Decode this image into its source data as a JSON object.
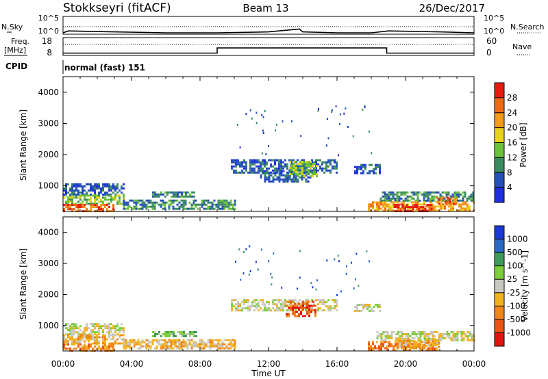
{
  "header": {
    "station": "Stokkseyri (fitACF)",
    "beam": "Beam 13",
    "date": "26/Dec/2017"
  },
  "strip_labels": {
    "nsky": "N.Sky",
    "nsearch": "N.Search",
    "freq_line1": "Freq.",
    "freq_line2": "[MHz]",
    "nave": "Nave",
    "cpid": "CPID",
    "cpid_value": "normal (fast) 151"
  },
  "strip_ticks": {
    "noise_left": [
      "10^5",
      "10^0"
    ],
    "noise_right": [
      "10^5",
      "10^0"
    ],
    "freq_left": [
      "18",
      "8"
    ],
    "nave_right": [
      "60",
      "0"
    ]
  },
  "colors": {
    "power": [
      "#1f2fe0",
      "#2550b8",
      "#3a8c5e",
      "#6cc13a",
      "#e8d21a",
      "#f39a1a",
      "#ef6a12",
      "#e81a0e"
    ],
    "velocity": [
      "#1a3ad8",
      "#2b6ac4",
      "#3f9b5a",
      "#7ccf3a",
      "#c8c8c0",
      "#f2b21e",
      "#f1861a",
      "#ec5414",
      "#e0140e"
    ]
  },
  "chart_data": [
    {
      "type": "line",
      "panel": "noise",
      "series": [
        {
          "name": "N.Sky",
          "x": [
            0,
            0.3,
            3,
            6,
            9,
            12,
            13.8,
            14,
            16,
            18,
            19,
            22,
            24
          ],
          "y": [
            1.0,
            1.2,
            1.1,
            1.0,
            1.0,
            1.1,
            1.4,
            1.1,
            1.0,
            1.0,
            1.2,
            1.1,
            1.0
          ]
        }
      ],
      "xlim": [
        0,
        24
      ],
      "left_ticks": [
        "10^5",
        "10^0"
      ],
      "right_ticks": [
        "10^5",
        "10^0"
      ]
    },
    {
      "type": "line",
      "panel": "frequency",
      "ylabel": "Freq. [MHz]",
      "series": [
        {
          "name": "Freq.",
          "x": [
            0,
            9.0,
            9.0,
            18.9,
            18.9,
            24
          ],
          "y": [
            9.3,
            9.3,
            12.2,
            12.2,
            9.3,
            9.3
          ]
        },
        {
          "name": "Nave",
          "x": [
            0,
            24
          ],
          "y": [
            38,
            38
          ]
        }
      ],
      "xlim": [
        0,
        24
      ],
      "ylim": [
        8,
        18
      ],
      "right_ylim": [
        0,
        60
      ],
      "left_ticks": [
        "18",
        "8"
      ],
      "right_ticks": [
        "60",
        "0"
      ]
    },
    {
      "type": "heatmap",
      "panel": "power",
      "xlabel": "",
      "ylabel": "Slant Range [km]",
      "colorbar_label": "Power [dB]",
      "colorbar_ticks": [
        "4",
        "8",
        "12",
        "16",
        "20",
        "24",
        "28"
      ],
      "xlim": [
        0,
        24
      ],
      "ylim": [
        180,
        4500
      ],
      "y_ticks": [
        "1000",
        "2000",
        "3000",
        "4000"
      ],
      "regions": [
        {
          "x": [
            0.0,
            3.5
          ],
          "r": [
            720,
            1080
          ],
          "level": 1
        },
        {
          "x": [
            0.0,
            3.5
          ],
          "r": [
            420,
            720
          ],
          "level": 3
        },
        {
          "x": [
            0.0,
            3.0
          ],
          "r": [
            200,
            420
          ],
          "level": 6
        },
        {
          "x": [
            3.5,
            10.0
          ],
          "r": [
            260,
            560
          ],
          "level": 2
        },
        {
          "x": [
            5.2,
            7.8
          ],
          "r": [
            640,
            820
          ],
          "level": 2
        },
        {
          "x": [
            9.8,
            16.0
          ],
          "r": [
            1450,
            1850
          ],
          "level": 1
        },
        {
          "x": [
            11.5,
            14.5
          ],
          "r": [
            1150,
            1500
          ],
          "level": 1
        },
        {
          "x": [
            13.2,
            14.8
          ],
          "r": [
            1300,
            1800
          ],
          "level": 3
        },
        {
          "x": [
            17.0,
            18.5
          ],
          "r": [
            1400,
            1700
          ],
          "level": 1
        },
        {
          "x": [
            18.5,
            24.0
          ],
          "r": [
            500,
            820
          ],
          "level": 2
        },
        {
          "x": [
            17.8,
            24.0
          ],
          "r": [
            200,
            500
          ],
          "level": 5
        },
        {
          "x": [
            19.3,
            21.5
          ],
          "r": [
            200,
            420
          ],
          "level": 7
        },
        {
          "x": [
            21.8,
            23.0
          ],
          "r": [
            400,
            650
          ],
          "level": 6
        }
      ]
    },
    {
      "type": "heatmap",
      "panel": "velocity",
      "xlabel": "Time UT",
      "ylabel": "Slant Range [km]",
      "colorbar_label": "Velocity [m s^-1]",
      "colorbar_ticks": [
        "1000",
        "500",
        "100",
        "25",
        "-25",
        "-100",
        "-500",
        "-1000"
      ],
      "xlim": [
        0,
        24
      ],
      "ylim": [
        180,
        4500
      ],
      "x_ticks": [
        "00:00",
        "04:00",
        "08:00",
        "12:00",
        "16:00",
        "20:00",
        "00:00"
      ],
      "y_ticks": [
        "1000",
        "2000",
        "3000",
        "4000"
      ],
      "regions": [
        {
          "x": [
            0.0,
            3.5
          ],
          "r": [
            720,
            1080
          ],
          "level": 4
        },
        {
          "x": [
            0.0,
            3.5
          ],
          "r": [
            420,
            720
          ],
          "level": 5
        },
        {
          "x": [
            0.0,
            3.0
          ],
          "r": [
            200,
            420
          ],
          "level": 6
        },
        {
          "x": [
            3.5,
            10.0
          ],
          "r": [
            260,
            560
          ],
          "level": 5
        },
        {
          "x": [
            5.2,
            7.8
          ],
          "r": [
            640,
            820
          ],
          "level": 3
        },
        {
          "x": [
            9.8,
            16.0
          ],
          "r": [
            1500,
            1850
          ],
          "level": 4
        },
        {
          "x": [
            13.0,
            14.8
          ],
          "r": [
            1300,
            1800
          ],
          "level": 7
        },
        {
          "x": [
            17.0,
            18.5
          ],
          "r": [
            1450,
            1700
          ],
          "level": 4
        },
        {
          "x": [
            18.3,
            24.0
          ],
          "r": [
            500,
            820
          ],
          "level": 4
        },
        {
          "x": [
            17.8,
            22.0
          ],
          "r": [
            200,
            500
          ],
          "level": 6
        },
        {
          "x": [
            19.5,
            22.0
          ],
          "r": [
            300,
            600
          ],
          "level": 5
        }
      ]
    }
  ]
}
